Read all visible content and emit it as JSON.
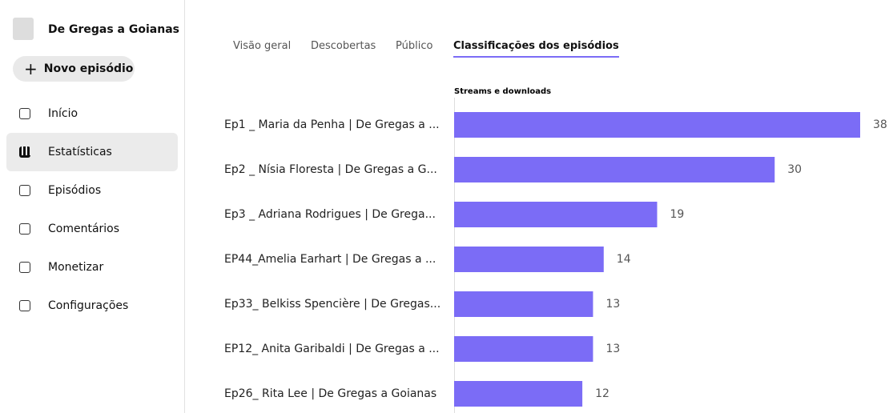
{
  "sidebar": {
    "podcast_name": "De Gregas a Goianas",
    "new_button": "Novo episódio",
    "nav": [
      "Início",
      "Estatísticas",
      "Episódios",
      "Comentários",
      "Monetizar",
      "Configurações"
    ],
    "active": 1
  },
  "tabs": {
    "items": [
      "Visão geral",
      "Descobertas",
      "Público",
      "Classificações dos episódios"
    ],
    "active": 3
  },
  "chart_data": {
    "type": "bar",
    "orientation": "horizontal",
    "title": "Streams e downloads",
    "color": "#7b6cf6",
    "categories": [
      "Ep1 _ Maria da Penha | De Gregas a ...",
      "Ep2 _ Nísia Floresta | De Gregas a G...",
      "Ep3 _ Adriana Rodrigues | De Grega...",
      "EP44_Amelia Earhart | De Gregas a ...",
      "Ep33_ Belkiss Spencière | De Gregas...",
      "EP12_ Anita Garibaldi | De Gregas a ...",
      "Ep26_ Rita Lee | De Gregas a Goianas"
    ],
    "values": [
      38,
      30,
      19,
      14,
      13,
      13,
      12
    ]
  }
}
